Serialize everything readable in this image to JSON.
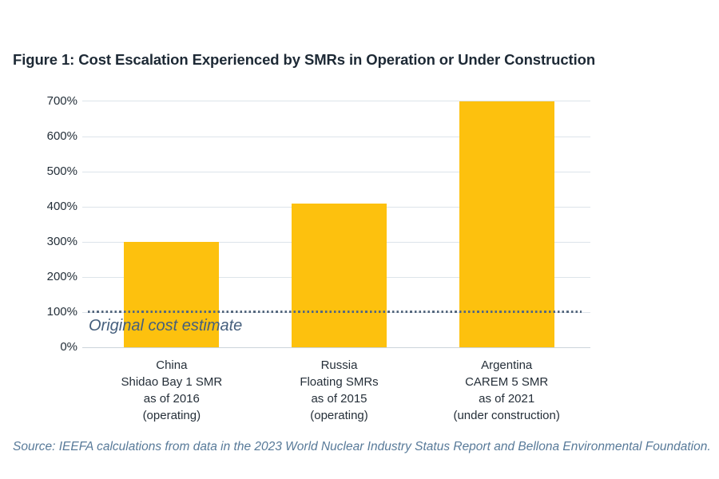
{
  "figure": {
    "title": "Figure 1: Cost Escalation Experienced by SMRs in Operation or Under Construction",
    "source": "Source: IEEFA calculations from data in the 2023 World Nuclear Industry Status Report and Bellona Environmental Foundation."
  },
  "chart_data": {
    "type": "bar",
    "title": "Figure 1: Cost Escalation Experienced by SMRs in Operation or Under Construction",
    "categories": [
      [
        "China",
        "Shidao Bay 1 SMR",
        "as of 2016",
        "(operating)"
      ],
      [
        "Russia",
        "Floating SMRs",
        "as of 2015",
        "(operating)"
      ],
      [
        "Argentina",
        "CAREM 5 SMR",
        "as of 2021",
        "(under construction)"
      ]
    ],
    "values": [
      300,
      410,
      700
    ],
    "unit": "%",
    "xlabel": "",
    "ylabel": "",
    "ylim": [
      0,
      700
    ],
    "ytick_step": 100,
    "ytick_labels": [
      "0%",
      "100%",
      "200%",
      "300%",
      "400%",
      "500%",
      "600%",
      "700%"
    ],
    "grid": true,
    "legend": "none",
    "reference_line": {
      "value": 100,
      "label": "Original cost estimate",
      "style": "dotted"
    },
    "colors": {
      "bar": "#FDC10E",
      "gridline": "#dde4ea",
      "reference_line": "#55687f",
      "reference_label": "#455f7d",
      "axis_text": "#242f39",
      "title_text": "#1d2935",
      "source_text": "#587a99"
    }
  }
}
